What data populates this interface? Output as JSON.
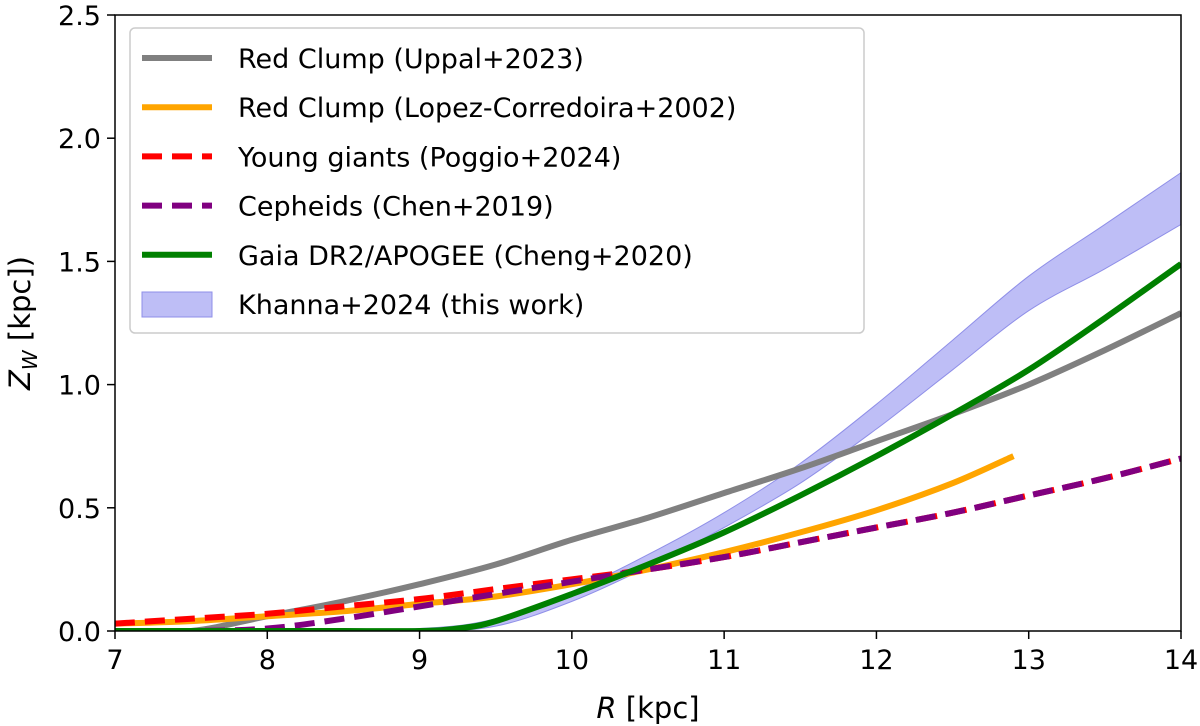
{
  "chart_data": {
    "type": "line",
    "title": "",
    "xlabel_var": "R",
    "xlabel_unit": " [kpc]",
    "ylabel_var": "Z",
    "ylabel_sub": "W",
    "ylabel_unit": " [kpc])",
    "xlim": [
      7,
      14
    ],
    "ylim": [
      0,
      2.5
    ],
    "xticks": [
      7,
      8,
      9,
      10,
      11,
      12,
      13,
      14
    ],
    "xtick_labels": [
      "7",
      "8",
      "9",
      "10",
      "11",
      "12",
      "13",
      "14"
    ],
    "yticks": [
      0,
      0.5,
      1.0,
      1.5,
      2.0,
      2.5
    ],
    "ytick_labels": [
      "0.0",
      "0.5",
      "1.0",
      "1.5",
      "2.0",
      "2.5"
    ],
    "legend_position": "top-left",
    "band": {
      "name": "Khanna+2024 (this work)",
      "color": "#b3b3f5",
      "x": [
        7.0,
        8.0,
        9.0,
        9.5,
        10.0,
        10.5,
        11.0,
        11.5,
        12.0,
        12.5,
        13.0,
        13.5,
        14.0
      ],
      "lower": [
        0.0,
        0.0,
        0.0,
        0.02,
        0.12,
        0.26,
        0.42,
        0.6,
        0.82,
        1.06,
        1.3,
        1.47,
        1.65
      ],
      "upper": [
        0.0,
        0.0,
        0.01,
        0.05,
        0.16,
        0.31,
        0.48,
        0.68,
        0.92,
        1.18,
        1.44,
        1.65,
        1.86
      ]
    },
    "series": [
      {
        "name": "Red Clump (Uppal+2023)",
        "color": "#808080",
        "dash": "solid",
        "x": [
          7.0,
          7.5,
          8.0,
          8.5,
          9.0,
          9.5,
          10.0,
          10.5,
          11.0,
          11.5,
          12.0,
          12.5,
          13.0,
          13.5,
          14.0
        ],
        "y": [
          0.0,
          0.0,
          0.06,
          0.12,
          0.19,
          0.27,
          0.37,
          0.46,
          0.56,
          0.66,
          0.77,
          0.88,
          1.0,
          1.14,
          1.29
        ]
      },
      {
        "name": "Red Clump (Lopez-Corredoira+2002)",
        "color": "#ffa500",
        "dash": "solid",
        "x": [
          7.0,
          7.5,
          8.0,
          8.5,
          9.0,
          9.5,
          10.0,
          10.5,
          11.0,
          11.5,
          12.0,
          12.5,
          12.9
        ],
        "y": [
          0.03,
          0.04,
          0.06,
          0.08,
          0.11,
          0.14,
          0.19,
          0.25,
          0.32,
          0.4,
          0.49,
          0.6,
          0.71
        ]
      },
      {
        "name": "Young giants (Poggio+2024)",
        "color": "#ff0000",
        "dash": "dashed",
        "x": [
          7.0,
          7.5,
          8.0,
          8.5,
          9.0,
          9.5,
          10.0,
          10.5,
          11.0,
          11.5,
          12.0,
          12.5,
          13.0,
          13.5,
          14.0
        ],
        "y": [
          0.03,
          0.05,
          0.07,
          0.1,
          0.13,
          0.17,
          0.21,
          0.25,
          0.3,
          0.36,
          0.42,
          0.48,
          0.55,
          0.62,
          0.7
        ]
      },
      {
        "name": "Cepheids (Chen+2019)",
        "color": "#800080",
        "dash": "dashed",
        "x": [
          7.0,
          7.5,
          8.0,
          8.5,
          9.0,
          9.5,
          10.0,
          10.5,
          11.0,
          11.5,
          12.0,
          12.5,
          13.0,
          13.5,
          14.0
        ],
        "y": [
          0.0,
          0.0,
          0.01,
          0.05,
          0.1,
          0.15,
          0.2,
          0.25,
          0.3,
          0.36,
          0.42,
          0.48,
          0.55,
          0.62,
          0.7
        ]
      },
      {
        "name": "Gaia DR2/APOGEE (Cheng+2020)",
        "color": "#008000",
        "dash": "solid",
        "x": [
          7.0,
          8.0,
          8.5,
          9.0,
          9.25,
          9.5,
          10.0,
          10.5,
          11.0,
          11.5,
          12.0,
          12.5,
          13.0,
          13.5,
          14.0
        ],
        "y": [
          0.0,
          0.0,
          0.0,
          0.0,
          0.01,
          0.04,
          0.15,
          0.27,
          0.4,
          0.55,
          0.71,
          0.88,
          1.06,
          1.27,
          1.49
        ]
      }
    ]
  }
}
